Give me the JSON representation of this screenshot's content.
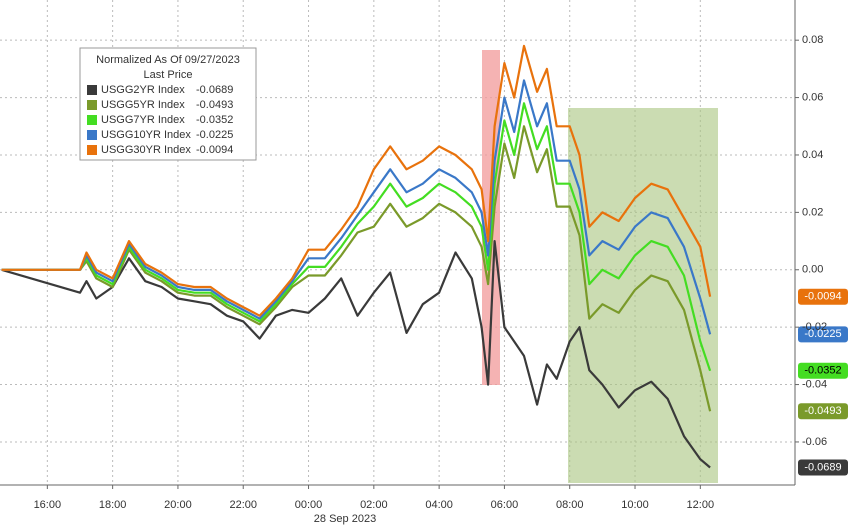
{
  "chart_data": {
    "type": "line",
    "legend_title": "Normalized As Of 09/27/2023",
    "legend_subtitle": "Last Price",
    "x_label": "28 Sep 2023",
    "x": [
      -9.4,
      -7.0,
      -6.8,
      -6.5,
      -6.0,
      -5.5,
      -5.0,
      -4.5,
      -4.0,
      -3.5,
      -3.0,
      -2.5,
      -2.0,
      -1.5,
      -1.0,
      -0.5,
      0,
      0.5,
      1.0,
      1.5,
      2.0,
      2.5,
      3.0,
      3.5,
      4.0,
      4.5,
      5.0,
      5.3,
      5.5,
      5.7,
      6.0,
      6.3,
      6.6,
      7.0,
      7.3,
      7.6,
      8.0,
      8.3,
      8.6,
      9.0,
      9.5,
      10.0,
      10.5,
      11.0,
      11.5,
      12.0,
      12.3
    ],
    "series": [
      {
        "name": "USGG2YR Index",
        "color": "#3a3a3a",
        "text_color": "#ffffff",
        "values": [
          0,
          -0.008,
          -0.004,
          -0.01,
          -0.006,
          0.004,
          -0.004,
          -0.006,
          -0.01,
          -0.011,
          -0.012,
          -0.016,
          -0.018,
          -0.024,
          -0.016,
          -0.014,
          -0.015,
          -0.01,
          -0.003,
          -0.016,
          -0.008,
          -0.001,
          -0.022,
          -0.012,
          -0.008,
          0.006,
          -0.003,
          -0.02,
          -0.04,
          0.01,
          -0.02,
          -0.025,
          -0.03,
          -0.047,
          -0.033,
          -0.038,
          -0.025,
          -0.02,
          -0.035,
          -0.04,
          -0.048,
          -0.042,
          -0.039,
          -0.045,
          -0.058,
          -0.066,
          -0.0689
        ]
      },
      {
        "name": "USGG5YR Index",
        "color": "#7a9a2a",
        "text_color": "#ffffff",
        "values": [
          0,
          0,
          0.003,
          -0.003,
          -0.006,
          0.007,
          -0.001,
          -0.004,
          -0.008,
          -0.009,
          -0.009,
          -0.013,
          -0.016,
          -0.019,
          -0.013,
          -0.006,
          -0.002,
          -0.002,
          0.005,
          0.013,
          0.015,
          0.023,
          0.015,
          0.018,
          0.023,
          0.02,
          0.015,
          0.008,
          -0.005,
          0.022,
          0.044,
          0.032,
          0.05,
          0.034,
          0.042,
          0.022,
          0.022,
          0.012,
          -0.017,
          -0.012,
          -0.015,
          -0.007,
          -0.002,
          -0.004,
          -0.014,
          -0.035,
          -0.0493
        ]
      },
      {
        "name": "USGG7YR Index",
        "color": "#44dd22",
        "text_color": "#000000",
        "values": [
          0,
          0,
          0.004,
          -0.002,
          -0.005,
          0.008,
          0.0,
          -0.003,
          -0.007,
          -0.008,
          -0.008,
          -0.012,
          -0.015,
          -0.018,
          -0.012,
          -0.005,
          0.001,
          0.001,
          0.008,
          0.016,
          0.022,
          0.03,
          0.022,
          0.025,
          0.03,
          0.027,
          0.022,
          0.015,
          0.0,
          0.03,
          0.052,
          0.04,
          0.058,
          0.042,
          0.05,
          0.03,
          0.03,
          0.02,
          -0.005,
          0.0,
          -0.003,
          0.005,
          0.01,
          0.008,
          -0.002,
          -0.025,
          -0.0352
        ]
      },
      {
        "name": "USGG10YR Index",
        "color": "#3a78c8",
        "text_color": "#ffffff",
        "values": [
          0,
          0,
          0.005,
          -0.001,
          -0.004,
          0.009,
          0.001,
          -0.002,
          -0.006,
          -0.007,
          -0.007,
          -0.011,
          -0.014,
          -0.017,
          -0.011,
          -0.004,
          0.004,
          0.004,
          0.011,
          0.019,
          0.027,
          0.035,
          0.027,
          0.03,
          0.035,
          0.032,
          0.027,
          0.02,
          0.005,
          0.038,
          0.06,
          0.048,
          0.066,
          0.05,
          0.058,
          0.038,
          0.038,
          0.028,
          0.005,
          0.01,
          0.007,
          0.015,
          0.02,
          0.018,
          0.008,
          -0.01,
          -0.0225
        ]
      },
      {
        "name": "USGG30YR Index",
        "color": "#e8720c",
        "text_color": "#ffffff",
        "values": [
          0,
          0,
          0.006,
          0,
          -0.003,
          0.01,
          0.002,
          -0.001,
          -0.005,
          -0.006,
          -0.006,
          -0.01,
          -0.013,
          -0.016,
          -0.01,
          -0.003,
          0.007,
          0.007,
          0.014,
          0.022,
          0.035,
          0.043,
          0.035,
          0.038,
          0.043,
          0.04,
          0.035,
          0.028,
          0.01,
          0.05,
          0.072,
          0.06,
          0.078,
          0.062,
          0.07,
          0.05,
          0.05,
          0.04,
          0.015,
          0.02,
          0.017,
          0.025,
          0.03,
          0.028,
          0.018,
          0.008,
          -0.0094
        ]
      }
    ],
    "xlim": [
      -9.45,
      14.9
    ],
    "xticks": [
      {
        "value": -8,
        "label": "16:00"
      },
      {
        "value": -6,
        "label": "18:00"
      },
      {
        "value": -4,
        "label": "20:00"
      },
      {
        "value": -2,
        "label": "22:00"
      },
      {
        "value": 0,
        "label": "00:00"
      },
      {
        "value": 2,
        "label": "02:00"
      },
      {
        "value": 4,
        "label": "04:00"
      },
      {
        "value": 6,
        "label": "06:00"
      },
      {
        "value": 8,
        "label": "08:00"
      },
      {
        "value": 10,
        "label": "10:00"
      },
      {
        "value": 12,
        "label": "12:00"
      }
    ],
    "ylim": [
      -0.075,
      0.094
    ],
    "yticks": [
      0.08,
      0.06,
      0.04,
      0.02,
      {
        "value": 0,
        "label": "0.00"
      },
      -0.02,
      -0.04,
      -0.06
    ],
    "grid": true
  }
}
